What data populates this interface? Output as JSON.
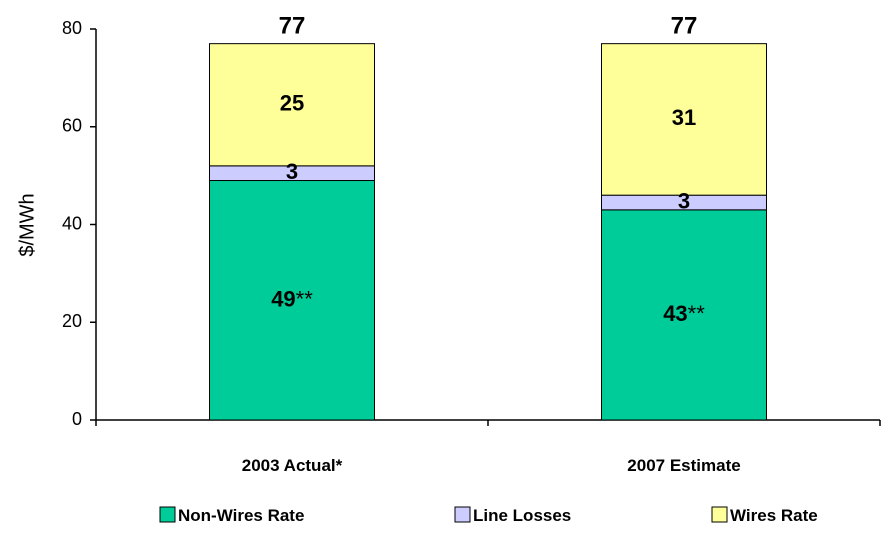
{
  "chart_data": {
    "type": "bar",
    "stacked": true,
    "categories": [
      "2003 Actual*",
      "2007 Estimate"
    ],
    "series": [
      {
        "name": "Non-Wires Rate",
        "values": [
          49,
          43
        ],
        "labels": [
          "49**",
          "43**"
        ],
        "color": "#00CC99"
      },
      {
        "name": "Line Losses",
        "values": [
          3,
          3
        ],
        "labels": [
          "3",
          "3"
        ],
        "color": "#CCCCFF"
      },
      {
        "name": "Wires Rate",
        "values": [
          25,
          31
        ],
        "labels": [
          "25",
          "31"
        ],
        "color": "#FFFF99"
      }
    ],
    "totals": [
      "77",
      "77"
    ],
    "ylabel": "$/MWh",
    "ylim": [
      0,
      80
    ],
    "yticks": [
      "0",
      "20",
      "40",
      "60",
      "80"
    ],
    "grid": false,
    "legend_position": "bottom"
  }
}
